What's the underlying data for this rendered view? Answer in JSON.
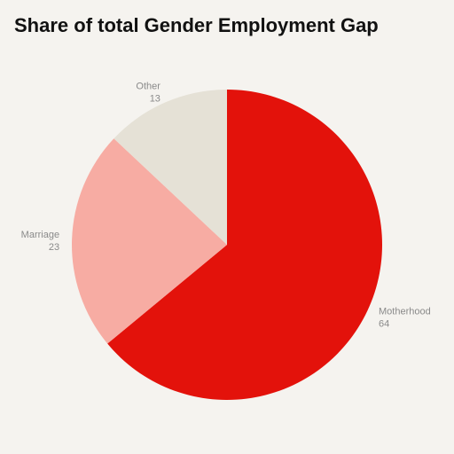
{
  "chart_data": {
    "type": "pie",
    "title": "Share of total Gender Employment Gap",
    "slices": [
      {
        "label": "Motherhood",
        "value": 64,
        "value_label": "64",
        "color": "#e3120b"
      },
      {
        "label": "Marriage",
        "value": 23,
        "value_label": "23",
        "color": "#f7aca3"
      },
      {
        "label": "Other",
        "value": 13,
        "value_label": "13",
        "color": "#e5e1d6"
      }
    ],
    "start": "12 o'clock",
    "direction": "clockwise",
    "legend": "none"
  },
  "colors": {
    "background": "#f5f3ef",
    "title": "#111111",
    "label": "#8a8a8a"
  }
}
